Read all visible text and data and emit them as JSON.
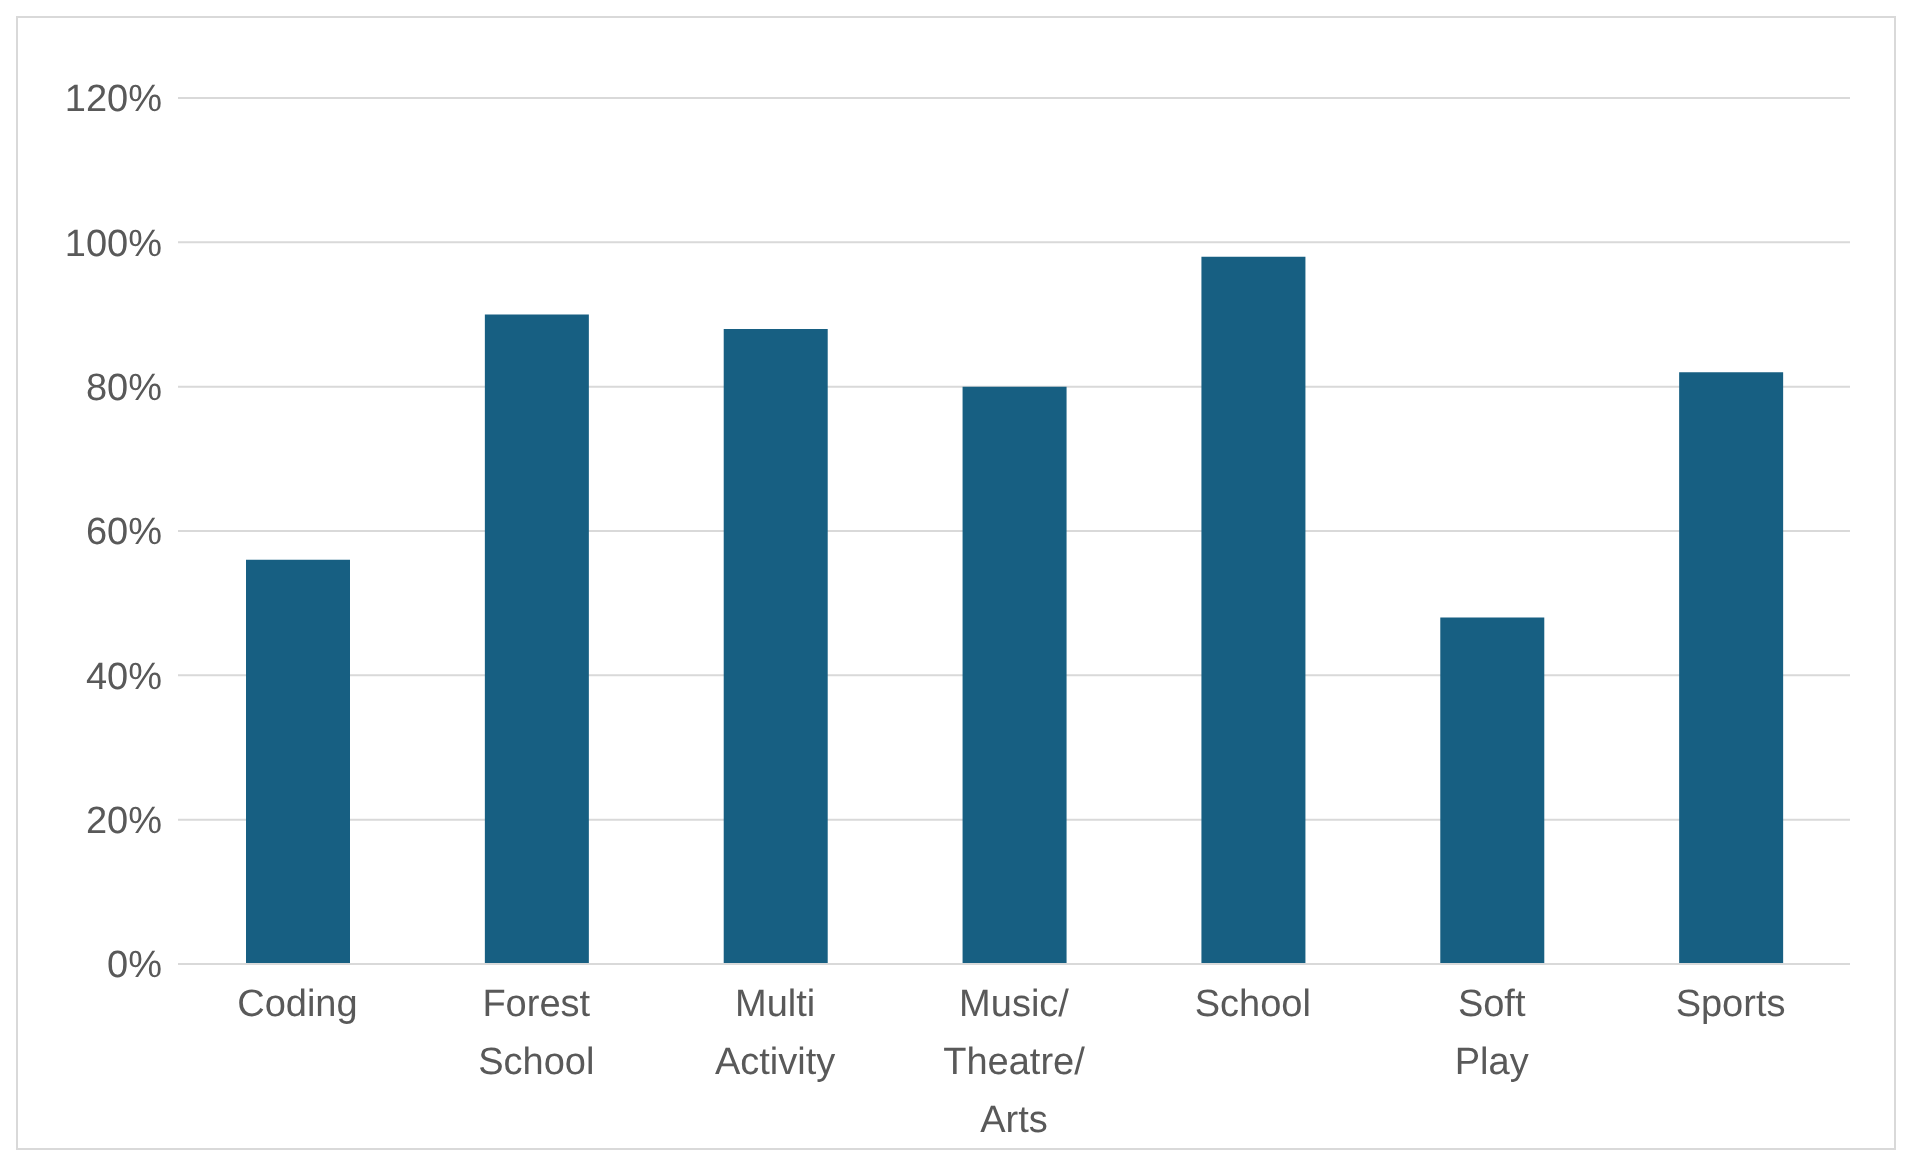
{
  "chart_data": {
    "type": "bar",
    "categories": [
      "Coding",
      "Forest School",
      "Multi Activity",
      "Music/Theatre/Arts",
      "School",
      "Soft Play",
      "Sports"
    ],
    "values": [
      56,
      90,
      88,
      80,
      98,
      48,
      82
    ],
    "color": "#175f82",
    "ylim": [
      0,
      120
    ],
    "yticks": [
      {
        "value": 0,
        "label": "0%"
      },
      {
        "value": 20,
        "label": "20%"
      },
      {
        "value": 40,
        "label": "40%"
      },
      {
        "value": 60,
        "label": "60%"
      },
      {
        "value": 80,
        "label": "80%"
      },
      {
        "value": 100,
        "label": "100%"
      },
      {
        "value": 120,
        "label": "120%"
      }
    ],
    "grid": "y",
    "legend": false
  }
}
